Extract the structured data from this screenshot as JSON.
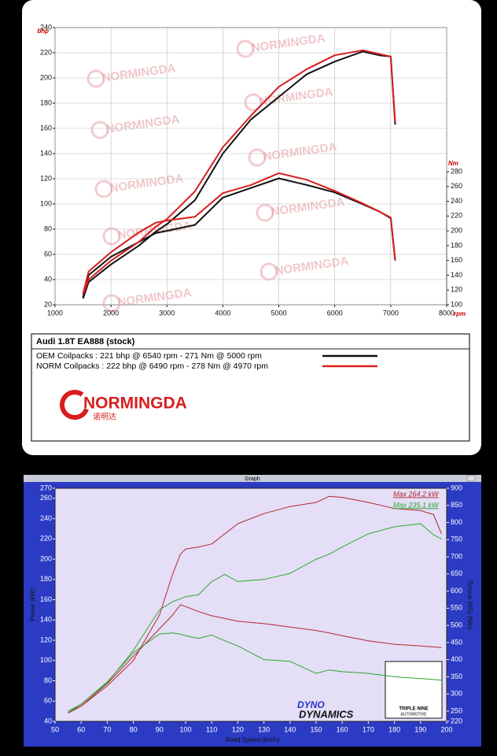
{
  "chart_data": [
    {
      "type": "line",
      "title": "Audi 1.8T EA888 (stock)",
      "ylabel": "bhp",
      "y2label": "Nm",
      "xlabel": "rpm",
      "brand": "NORMINGDA",
      "brand_cn": "诺明达",
      "x": [
        1500,
        1600,
        2000,
        2500,
        2800,
        3000,
        3500,
        4000,
        4500,
        5000,
        5500,
        6000,
        6500,
        6800,
        7000,
        7080
      ],
      "series": [
        {
          "name": "OEM Coilpacks : 221 bhp @ 6540 rpm - 271 Nm @ 5000 rpm",
          "color": "#111111",
          "values": [
            25,
            38,
            52,
            67,
            78,
            84,
            103,
            140,
            167,
            185,
            203,
            213,
            221,
            218,
            217,
            163
          ],
          "y2_values": [
            110,
            140,
            165,
            185,
            197,
            200,
            208,
            245,
            258,
            271,
            262,
            252,
            236,
            226,
            217,
            160
          ]
        },
        {
          "name": "NORM Coilpacks : 222 bhp @ 6490 rpm - 278 Nm @ 4970 rpm",
          "color": "#d81e1e",
          "values": [
            28,
            40,
            55,
            70,
            82,
            88,
            110,
            145,
            170,
            193,
            207,
            218,
            222,
            219,
            217,
            165
          ],
          "y2_values": [
            115,
            145,
            171,
            198,
            211,
            214,
            219,
            251,
            262,
            278,
            269,
            254,
            237,
            226,
            218,
            161
          ]
        }
      ],
      "xlim": [
        1000,
        8000
      ],
      "xticks": [
        1000,
        2000,
        3000,
        4000,
        5000,
        6000,
        7000,
        8000
      ],
      "ylim": [
        20,
        240
      ],
      "yticks": [
        20,
        40,
        60,
        80,
        100,
        120,
        140,
        160,
        180,
        200,
        220,
        240
      ],
      "y2lim": [
        100,
        280
      ],
      "y2ticks": [
        100,
        120,
        140,
        160,
        180,
        200,
        220,
        240,
        260,
        280
      ],
      "grid": true
    },
    {
      "type": "line",
      "title": "Graph",
      "xlabel": "Road Speed (km/h)",
      "ylabel": "Power (kW)",
      "y2label": "Torque (NS) (Nm)",
      "logos": [
        "DYNO",
        "DYNAMICS",
        "TRIPLE NINE",
        "AUTOMOTIVE"
      ],
      "x": [
        55,
        60,
        70,
        80,
        90,
        95,
        98,
        100,
        105,
        110,
        115,
        120,
        130,
        140,
        150,
        155,
        160,
        170,
        180,
        190,
        195,
        198
      ],
      "series": [
        {
          "color": "#b3262e",
          "annotation": "Max 264.2 kW",
          "values": [
            48,
            55,
            75,
            100,
            145,
            185,
            205,
            210,
            212,
            215,
            225,
            235,
            245,
            252,
            256,
            262,
            261,
            256,
            250,
            248,
            244,
            225
          ],
          "y2_values": [
            245,
            265,
            330,
            410,
            490,
            530,
            560,
            555,
            540,
            528,
            520,
            512,
            505,
            495,
            485,
            478,
            470,
            455,
            445,
            440,
            437,
            435
          ]
        },
        {
          "color": "#2fa52f",
          "annotation": "Max 235.1 kW",
          "values": [
            50,
            57,
            78,
            110,
            150,
            158,
            161,
            163,
            165,
            178,
            185,
            178,
            180,
            186,
            200,
            205,
            212,
            225,
            232,
            235,
            224,
            220
          ],
          "y2_values": [
            245,
            270,
            335,
            420,
            475,
            478,
            474,
            470,
            462,
            472,
            455,
            440,
            400,
            395,
            360,
            370,
            365,
            360,
            350,
            345,
            342,
            340
          ]
        }
      ],
      "xlim": [
        50,
        200
      ],
      "xticks": [
        50,
        60,
        70,
        80,
        90,
        100,
        110,
        120,
        130,
        140,
        150,
        160,
        170,
        180,
        190,
        200
      ],
      "ylim": [
        40,
        270
      ],
      "yticks": [
        40,
        60,
        80,
        100,
        120,
        140,
        160,
        180,
        200,
        220,
        240,
        260,
        270
      ],
      "y2lim": [
        220,
        900
      ],
      "y2ticks": [
        220,
        250,
        300,
        350,
        400,
        450,
        500,
        550,
        600,
        650,
        700,
        750,
        800,
        850,
        900
      ],
      "grid": false
    }
  ]
}
